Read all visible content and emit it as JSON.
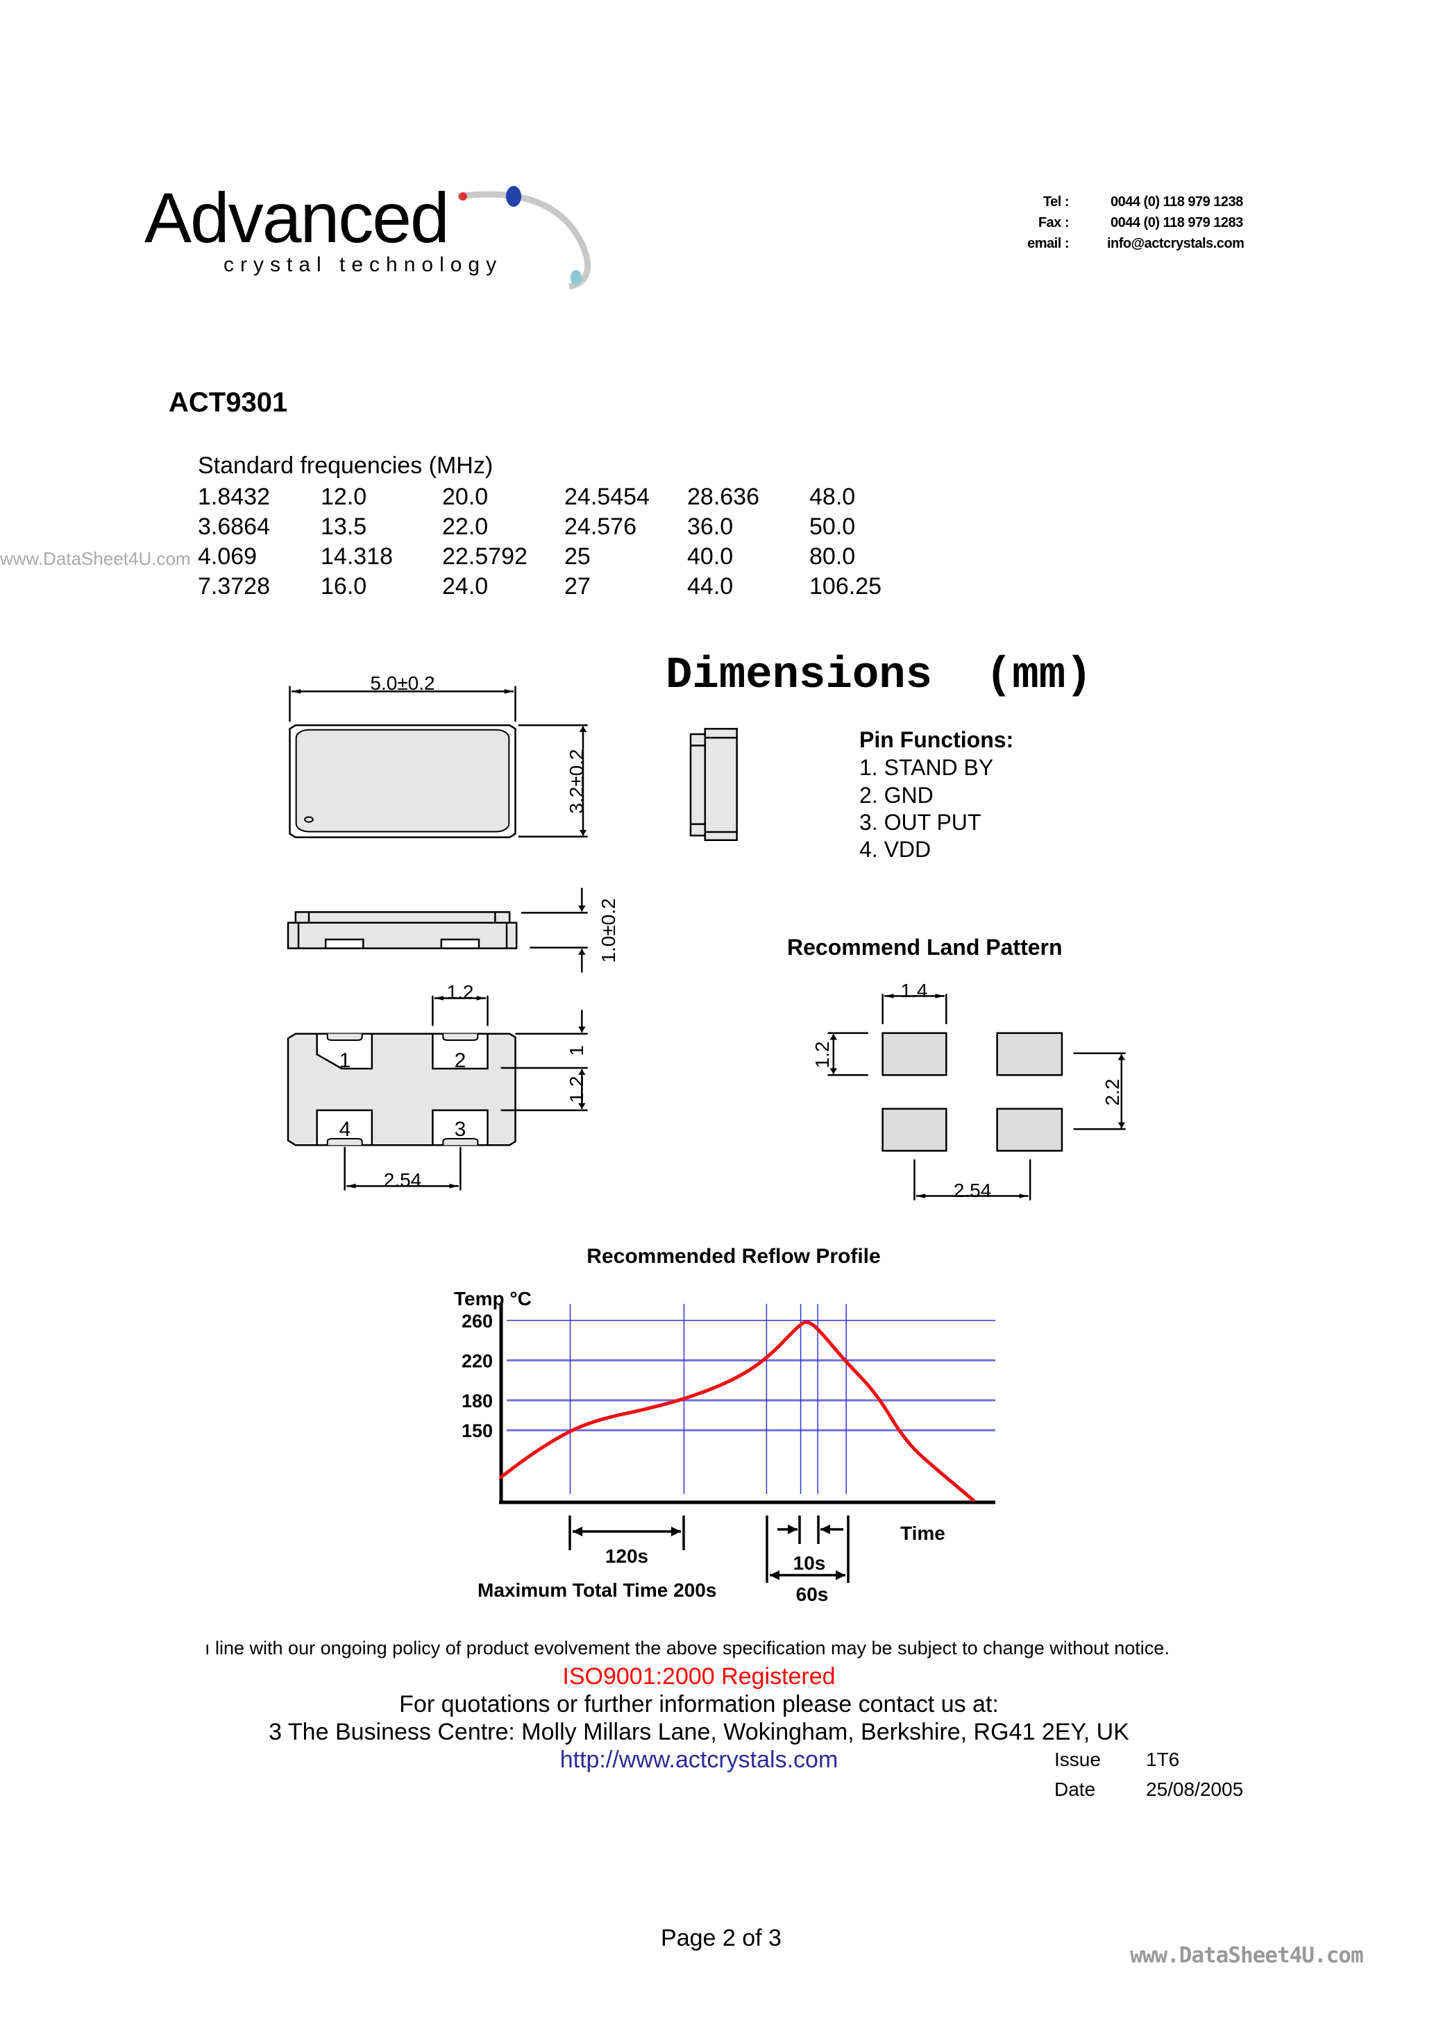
{
  "logo": {
    "main": "Advanced",
    "sub": "crystal technology"
  },
  "contact": [
    {
      "label": "Tel :",
      "value": "0044 (0) 118 979 1238"
    },
    {
      "label": "Fax :",
      "value": "0044 (0) 118 979 1283"
    },
    {
      "label": "email :",
      "value": "info@actcrystals.com"
    }
  ],
  "watermark_left": "www.DataSheet4U.com",
  "product": "ACT9301",
  "frequencies": {
    "title": "Standard frequencies (MHz)",
    "rows": [
      [
        "1.8432",
        "12.0",
        "20.0",
        "24.5454",
        "28.636",
        "48.0"
      ],
      [
        "3.6864",
        "13.5",
        "22.0",
        "24.576",
        "36.0",
        "50.0"
      ],
      [
        "4.069",
        "14.318",
        "22.5792",
        "25",
        "40.0",
        "80.0"
      ],
      [
        "7.3728",
        "16.0",
        "24.0",
        "27",
        "44.0",
        "106.25"
      ]
    ]
  },
  "dimensions": {
    "title": "Dimensions  (mm)",
    "length": "5.0±0.2",
    "width": "3.2±0.2",
    "height": "1.0±0.2",
    "pad_width": "1.2",
    "pad_edge": "1",
    "pad_height": "1.2",
    "pad_pitch": "2.54",
    "pin_numbers": [
      "1",
      "2",
      "3",
      "4"
    ],
    "pin_functions_title": "Pin Functions:",
    "pin_functions": [
      "1. STAND BY",
      "2. GND",
      "3. OUT PUT",
      "4. VDD"
    ],
    "land_pattern_title": "Recommend Land Pattern",
    "land_width": "1.4",
    "land_height": "1.2",
    "land_vpitch": "2.2",
    "land_hpitch": "2.54"
  },
  "chart_data": {
    "type": "line",
    "title": "Recommended Reflow Profile",
    "ylabel": "Temp °C",
    "xlabel": "Time",
    "yticks": [
      260,
      220,
      180,
      150
    ],
    "ylim": [
      78,
      278
    ],
    "grid": true,
    "series": [
      {
        "color": "#ee1111",
        "points": [
          [
            0,
            103
          ],
          [
            32,
            126
          ],
          [
            73,
            150
          ],
          [
            108,
            162
          ],
          [
            148,
            170
          ],
          [
            193,
            181
          ],
          [
            243,
            199
          ],
          [
            280,
            221
          ],
          [
            316,
            257
          ],
          [
            324,
            259
          ],
          [
            335,
            251
          ],
          [
            364,
            218
          ],
          [
            395,
            188
          ],
          [
            427,
            138
          ],
          [
            459,
            111
          ],
          [
            498,
            80
          ]
        ]
      }
    ],
    "guide_times": [
      73,
      193,
      280,
      316,
      334,
      364
    ],
    "annotations": {
      "soak": "120s",
      "peak": "10s",
      "reflow": "60s",
      "total": "Maximum Total Time 200s"
    },
    "grid_color": "#3333cc"
  },
  "footer": {
    "notice": "ı line with our ongoing policy of product evolvement the above specification may be subject to change without notice.",
    "iso": "ISO9001:2000 Registered",
    "contact_line": "For quotations or further information please contact us at:",
    "address": "3 The Business Centre: Molly Millars Lane, Wokingham, Berkshire, RG41 2EY, UK",
    "url": "http://www.actcrystals.com",
    "issue_label": "Issue",
    "issue_value": "1T6",
    "date_label": "Date",
    "date_value": "25/08/2005",
    "page": "Page 2 of 3",
    "watermark": "www.DataSheet4U.com"
  },
  "colors": {
    "iso": "#ff0000",
    "url": "#2b2b99",
    "watermark": "#999999"
  }
}
